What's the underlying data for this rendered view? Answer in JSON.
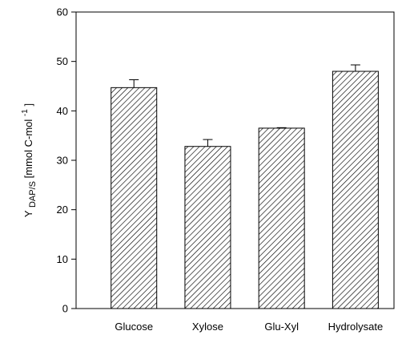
{
  "chart_data": {
    "type": "bar",
    "categories": [
      "Glucose",
      "Xylose",
      "Glu-Xyl",
      "Hydrolysate"
    ],
    "values": [
      44.7,
      32.8,
      36.5,
      48.0
    ],
    "errors": [
      1.6,
      1.4,
      0.1,
      1.3
    ],
    "title": "",
    "xlabel": "",
    "ylabel": {
      "base": "Y",
      "subscript": "DAP/S",
      "unit_prefix": " [mmol C-mol",
      "unit_superscript": "-1",
      "unit_suffix": "]"
    },
    "ylim": [
      0,
      60
    ],
    "yticks": [
      "0",
      "10",
      "20",
      "30",
      "40",
      "50",
      "60"
    ],
    "bar_fill": "hatched",
    "colors": {
      "bar_outline": "#000000",
      "hatch": "#000000",
      "background": "#ffffff"
    },
    "grid": false,
    "legend": "none"
  }
}
